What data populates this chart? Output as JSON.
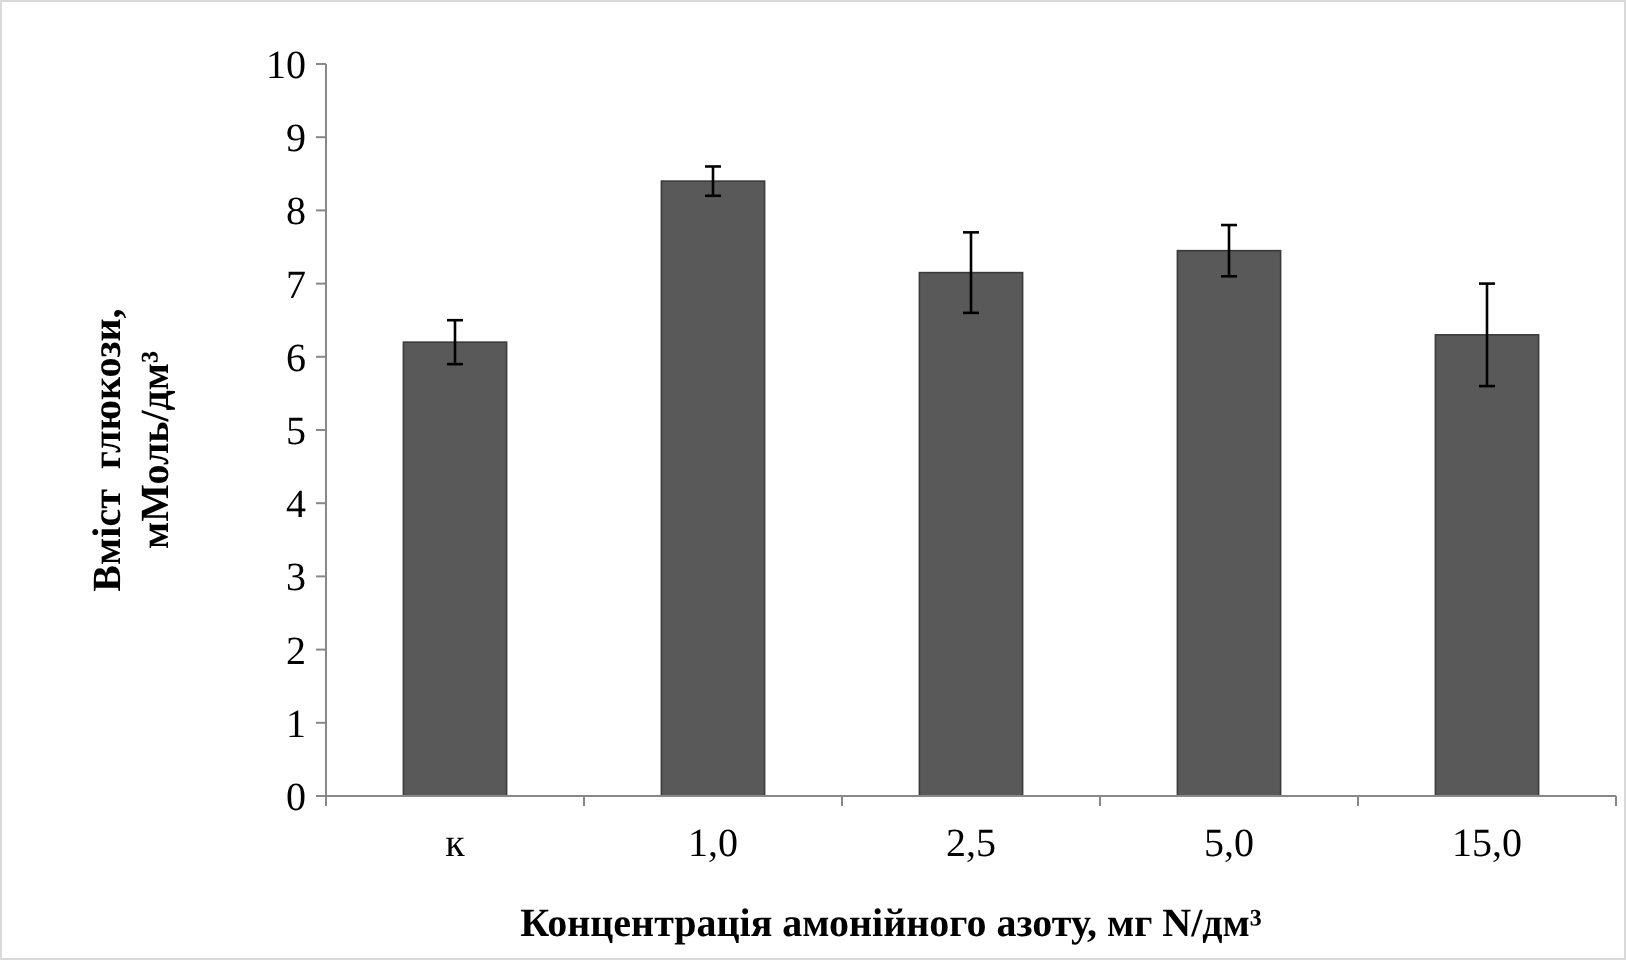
{
  "chart_data": {
    "type": "bar",
    "xlabel": "Концентрація амонійного азоту, мг N/дм³",
    "ylabel": "Вміст  глюкози,\nмМоль/дм³",
    "categories": [
      "к",
      "1,0",
      "2,5",
      "5,0",
      "15,0"
    ],
    "values": [
      6.2,
      8.4,
      7.15,
      7.45,
      6.3
    ],
    "errors": [
      0.3,
      0.2,
      0.55,
      0.35,
      0.7
    ],
    "color": "#595959",
    "ylim": [
      0,
      10
    ],
    "yticks": [
      0,
      1,
      2,
      3,
      4,
      5,
      6,
      7,
      8,
      9,
      10
    ],
    "grid": false
  }
}
